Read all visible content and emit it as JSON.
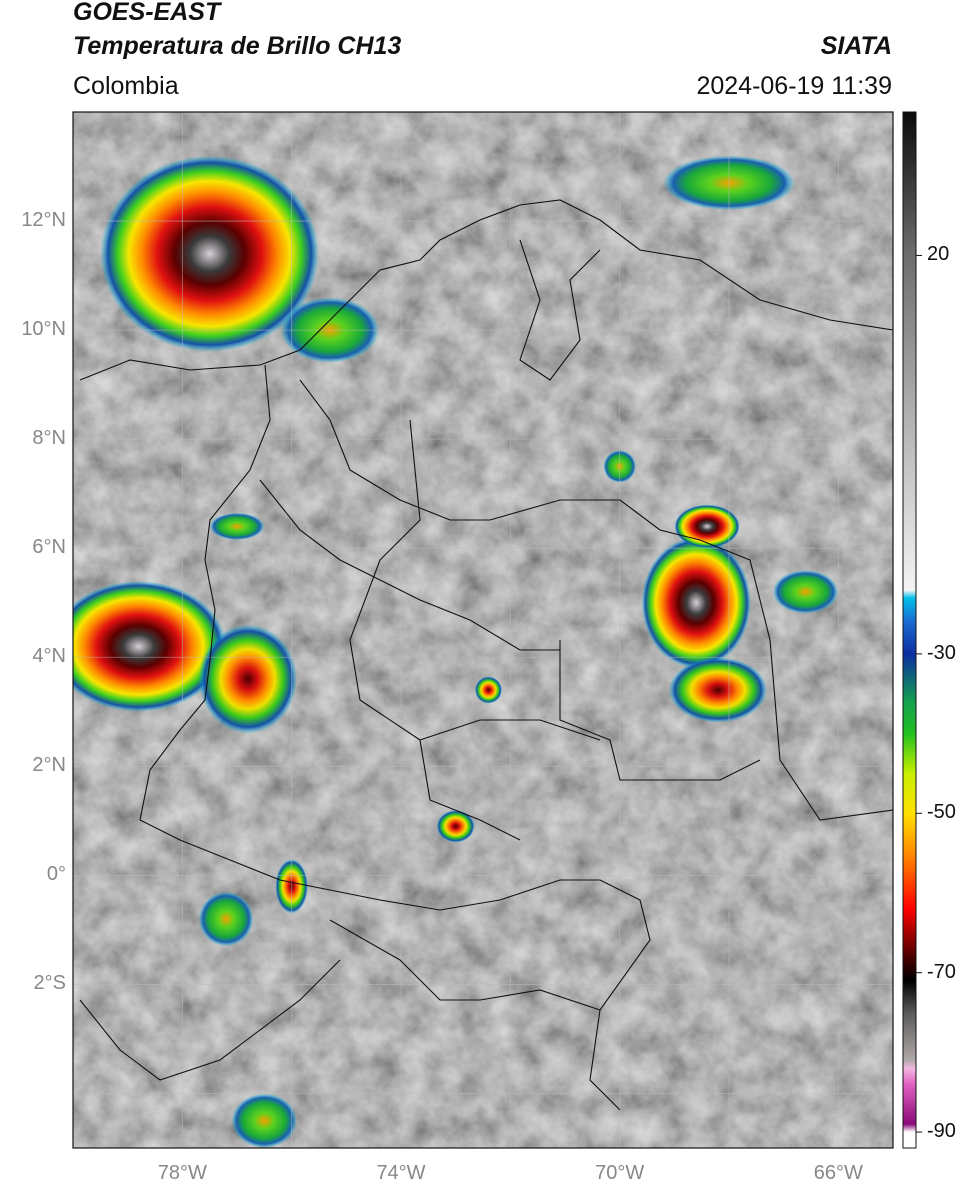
{
  "header": {
    "satellite": "GOES-EAST",
    "product": "Temperatura de Brillo CH13",
    "organization": "SIATA",
    "region": "Colombia",
    "datetime": "2024-06-19 11:39"
  },
  "map": {
    "lon_range": [
      -80,
      -65
    ],
    "lat_range": [
      -5,
      14
    ],
    "lat_labels": [
      {
        "lat": 12,
        "text": "12°N"
      },
      {
        "lat": 10,
        "text": "10°N"
      },
      {
        "lat": 8,
        "text": "8°N"
      },
      {
        "lat": 6,
        "text": "6°N"
      },
      {
        "lat": 4,
        "text": "4°N"
      },
      {
        "lat": 2,
        "text": "2°N"
      },
      {
        "lat": 0,
        "text": "0°"
      },
      {
        "lat": -2,
        "text": "2°S"
      }
    ],
    "lon_labels": [
      {
        "lon": -78,
        "text": "78°W"
      },
      {
        "lon": -74,
        "text": "74°W"
      },
      {
        "lon": -70,
        "text": "70°W"
      },
      {
        "lon": -66,
        "text": "66°W"
      }
    ],
    "storm_cells": [
      {
        "lon": -77.5,
        "lat": 11.4,
        "rx": 2.0,
        "ry": 1.8,
        "intensity": 1.0
      },
      {
        "lon": -78.8,
        "lat": 4.2,
        "rx": 1.6,
        "ry": 1.2,
        "intensity": 0.95
      },
      {
        "lon": -76.8,
        "lat": 3.6,
        "rx": 0.9,
        "ry": 1.0,
        "intensity": 0.7
      },
      {
        "lon": -68.6,
        "lat": 5.0,
        "rx": 1.0,
        "ry": 1.2,
        "intensity": 1.0
      },
      {
        "lon": -68.2,
        "lat": 3.4,
        "rx": 0.9,
        "ry": 0.6,
        "intensity": 0.6
      },
      {
        "lon": -68.4,
        "lat": 6.4,
        "rx": 0.6,
        "ry": 0.4,
        "intensity": 0.9
      },
      {
        "lon": -72.4,
        "lat": 3.4,
        "rx": 0.25,
        "ry": 0.25,
        "intensity": 0.8
      },
      {
        "lon": -73.0,
        "lat": 0.9,
        "rx": 0.35,
        "ry": 0.3,
        "intensity": 0.7
      },
      {
        "lon": -76.0,
        "lat": -0.2,
        "rx": 0.3,
        "ry": 0.5,
        "intensity": 0.8
      },
      {
        "lon": -77.0,
        "lat": 6.4,
        "rx": 0.5,
        "ry": 0.25,
        "intensity": 0.5
      },
      {
        "lon": -77.2,
        "lat": -0.8,
        "rx": 0.5,
        "ry": 0.5,
        "intensity": 0.4
      },
      {
        "lon": -66.6,
        "lat": 5.2,
        "rx": 0.6,
        "ry": 0.4,
        "intensity": 0.3
      },
      {
        "lon": -76.5,
        "lat": -4.5,
        "rx": 0.6,
        "ry": 0.5,
        "intensity": 0.4
      },
      {
        "lon": -70.0,
        "lat": 7.5,
        "rx": 0.3,
        "ry": 0.3,
        "intensity": 0.3
      },
      {
        "lon": -68.0,
        "lat": 12.7,
        "rx": 1.2,
        "ry": 0.5,
        "intensity": 0.2
      },
      {
        "lon": -75.3,
        "lat": 10.0,
        "rx": 0.9,
        "ry": 0.6,
        "intensity": 0.25
      }
    ]
  },
  "colorbar": {
    "range": [
      -92,
      38
    ],
    "ticks": [
      {
        "value": 20,
        "text": "20"
      },
      {
        "value": -30,
        "text": "-30"
      },
      {
        "value": -50,
        "text": "-50"
      },
      {
        "value": -70,
        "text": "-70"
      },
      {
        "value": -90,
        "text": "-90"
      }
    ]
  }
}
